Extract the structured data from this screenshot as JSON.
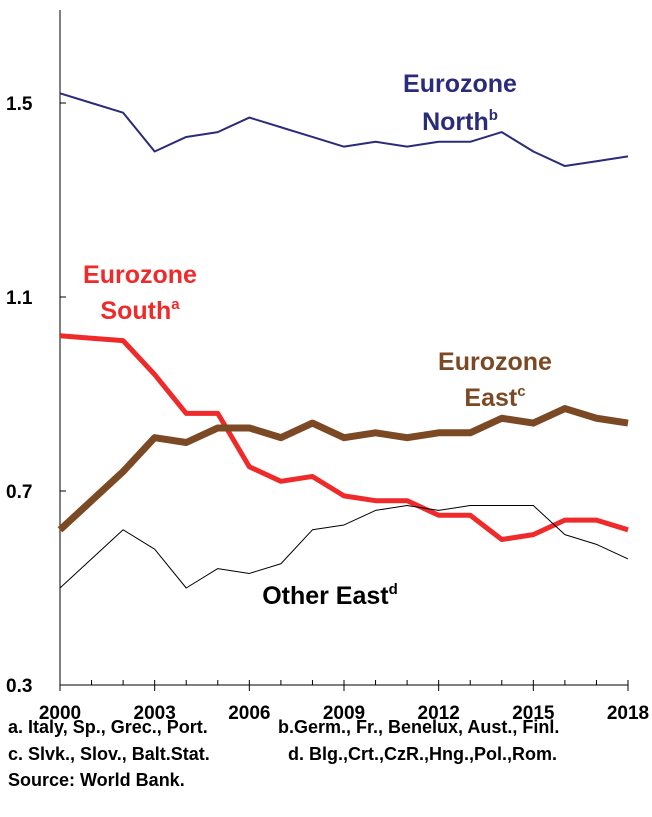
{
  "chart_data": {
    "type": "line",
    "x": [
      2000,
      2001,
      2002,
      2003,
      2004,
      2005,
      2006,
      2007,
      2008,
      2009,
      2010,
      2011,
      2012,
      2013,
      2014,
      2015,
      2016,
      2017,
      2018
    ],
    "xlim": [
      2000,
      2018
    ],
    "xticks": [
      2000,
      2003,
      2006,
      2009,
      2012,
      2015,
      2018
    ],
    "ylim": [
      0.3,
      1.7
    ],
    "yticks": [
      0.3,
      0.7,
      1.1,
      1.5
    ],
    "series": [
      {
        "label": [
          "Eurozone",
          "North"
        ],
        "sup": "b",
        "color": "#2b2b7c",
        "width": 2,
        "values": [
          1.52,
          1.5,
          1.48,
          1.4,
          1.43,
          1.44,
          1.47,
          1.45,
          1.43,
          1.41,
          1.42,
          1.41,
          1.42,
          1.42,
          1.44,
          1.4,
          1.37,
          1.38,
          1.39
        ]
      },
      {
        "label": [
          "Eurozone",
          "South"
        ],
        "sup": "a",
        "color": "#ee2a2a",
        "width": 5,
        "values": [
          1.02,
          1.015,
          1.01,
          0.94,
          0.86,
          0.86,
          0.75,
          0.72,
          0.73,
          0.69,
          0.68,
          0.68,
          0.65,
          0.65,
          0.6,
          0.61,
          0.64,
          0.64,
          0.62
        ]
      },
      {
        "label": [
          "Eurozone",
          "East"
        ],
        "sup": "c",
        "color": "#7b4a25",
        "width": 7,
        "values": [
          0.62,
          0.68,
          0.74,
          0.81,
          0.8,
          0.83,
          0.83,
          0.81,
          0.84,
          0.81,
          0.82,
          0.81,
          0.82,
          0.82,
          0.85,
          0.84,
          0.87,
          0.85,
          0.84
        ]
      },
      {
        "label": [
          "Other East"
        ],
        "sup": "d",
        "color": "#000000",
        "width": 1,
        "values": [
          0.5,
          0.56,
          0.62,
          0.58,
          0.5,
          0.54,
          0.53,
          0.55,
          0.62,
          0.63,
          0.66,
          0.67,
          0.66,
          0.67,
          0.67,
          0.67,
          0.61,
          0.59,
          0.56
        ]
      }
    ],
    "notes": [
      "a. Italy, Sp., Grec., Port.",
      "b.Germ., Fr., Benelux, Aust., Finl.",
      "c. Slvk., Slov., Balt.Stat.",
      "d. Blg.,Crt.,CzR.,Hng.,Pol.,Rom.",
      "Source: World Bank."
    ]
  }
}
